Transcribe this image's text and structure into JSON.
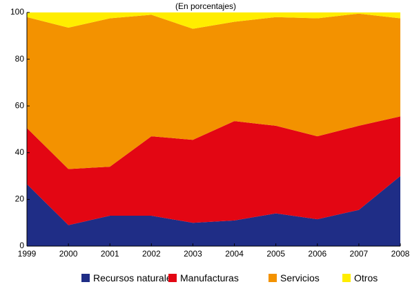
{
  "chart_data": {
    "type": "area",
    "stacked": true,
    "title": "(En porcentajes)",
    "x": [
      "1999",
      "2000",
      "2001",
      "2002",
      "2003",
      "2004",
      "2005",
      "2006",
      "2007",
      "2008"
    ],
    "ylim": [
      0,
      100
    ],
    "yticks": [
      "0",
      "20",
      "40",
      "60",
      "80",
      "100"
    ],
    "grid": false,
    "legend_position": "bottom",
    "series": [
      {
        "name": "Recursos naturales",
        "color": "#1f2d86",
        "values": [
          26.5,
          9,
          13,
          13,
          10,
          11,
          14,
          11.5,
          15.5,
          30
        ]
      },
      {
        "name": "Manufacturas",
        "color": "#e30613",
        "values": [
          24,
          24,
          21,
          34,
          35.5,
          42.5,
          37.5,
          35.5,
          36,
          25.5
        ]
      },
      {
        "name": "Servicios",
        "color": "#f39200",
        "values": [
          47.5,
          60.5,
          63.5,
          52,
          47.5,
          42.5,
          46.5,
          50.5,
          48,
          42
        ]
      },
      {
        "name": "Otros",
        "color": "#ffed00",
        "values": [
          2,
          6.5,
          2.5,
          1,
          7,
          4,
          2,
          2.5,
          0.5,
          2.5
        ]
      }
    ]
  }
}
